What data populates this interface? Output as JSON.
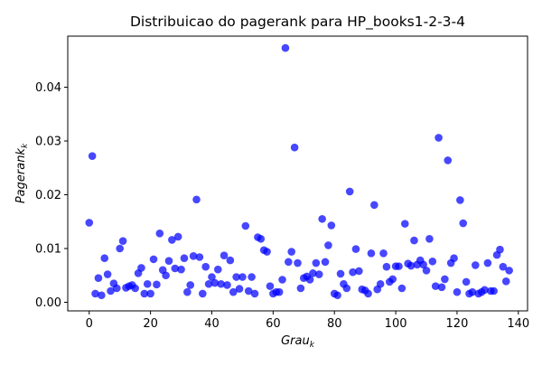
{
  "chart_data": {
    "type": "scatter",
    "title": "Distribuicao do pagerank para HP_books1-2-3-4",
    "xlabel": {
      "main": "Grau",
      "sub": "k"
    },
    "ylabel": {
      "main": "Pagerank",
      "sub": "k"
    },
    "xlim": [
      -7,
      143
    ],
    "ylim": [
      -0.0016,
      0.0495
    ],
    "x_ticks": [
      0,
      20,
      40,
      60,
      80,
      100,
      120,
      140
    ],
    "x_tick_labels": [
      "0",
      "20",
      "40",
      "60",
      "80",
      "100",
      "120",
      "140"
    ],
    "y_ticks": [
      0.0,
      0.01,
      0.02,
      0.03,
      0.04
    ],
    "y_tick_labels": [
      "0.00",
      "0.01",
      "0.02",
      "0.03",
      "0.04"
    ],
    "grid": false,
    "legend": "none",
    "color": "#0000ff",
    "x": [
      0,
      1,
      2,
      3,
      4,
      5,
      6,
      7,
      8,
      9,
      10,
      11,
      12,
      13,
      14,
      15,
      16,
      17,
      18,
      19,
      20,
      21,
      22,
      23,
      24,
      25,
      26,
      27,
      28,
      29,
      30,
      31,
      32,
      33,
      34,
      35,
      36,
      37,
      38,
      39,
      40,
      41,
      42,
      43,
      44,
      45,
      46,
      47,
      48,
      49,
      50,
      51,
      52,
      53,
      54,
      55,
      56,
      57,
      58,
      59,
      60,
      61,
      62,
      63,
      64,
      65,
      66,
      67,
      68,
      69,
      70,
      71,
      72,
      73,
      74,
      75,
      76,
      77,
      78,
      79,
      80,
      81,
      82,
      83,
      84,
      85,
      86,
      87,
      88,
      89,
      90,
      91,
      92,
      93,
      94,
      95,
      96,
      97,
      98,
      99,
      100,
      101,
      102,
      103,
      104,
      105,
      106,
      107,
      108,
      109,
      110,
      111,
      112,
      113,
      114,
      115,
      116,
      117,
      118,
      119,
      120,
      121,
      122,
      123,
      124,
      125,
      126,
      127,
      128,
      129,
      130,
      131,
      132,
      133,
      134,
      135,
      136,
      137
    ],
    "y": [
      0.0148,
      0.0272,
      0.0016,
      0.0045,
      0.0013,
      0.0082,
      0.0052,
      0.0021,
      0.0035,
      0.0026,
      0.01,
      0.0114,
      0.0027,
      0.003,
      0.0032,
      0.0026,
      0.0054,
      0.0064,
      0.0016,
      0.0034,
      0.0016,
      0.008,
      0.0033,
      0.0128,
      0.006,
      0.005,
      0.0077,
      0.0116,
      0.0063,
      0.0122,
      0.0061,
      0.0082,
      0.0019,
      0.0032,
      0.0086,
      0.0191,
      0.0084,
      0.0016,
      0.0066,
      0.0034,
      0.0047,
      0.0036,
      0.0061,
      0.0034,
      0.0087,
      0.0032,
      0.0078,
      0.0019,
      0.0047,
      0.0025,
      0.0047,
      0.0142,
      0.0021,
      0.0047,
      0.0016,
      0.0121,
      0.0118,
      0.0097,
      0.0094,
      0.003,
      0.0016,
      0.0019,
      0.0019,
      0.0042,
      0.0473,
      0.0075,
      0.0094,
      0.0288,
      0.0073,
      0.0026,
      0.0045,
      0.0048,
      0.0042,
      0.0054,
      0.0073,
      0.0052,
      0.0155,
      0.0075,
      0.0106,
      0.0143,
      0.0016,
      0.0013,
      0.0053,
      0.0034,
      0.0026,
      0.0206,
      0.0056,
      0.0099,
      0.0058,
      0.0024,
      0.0022,
      0.0016,
      0.0091,
      0.0181,
      0.0024,
      0.0034,
      0.0091,
      0.0066,
      0.0038,
      0.0043,
      0.0067,
      0.0067,
      0.0026,
      0.0146,
      0.0072,
      0.0068,
      0.0115,
      0.007,
      0.0078,
      0.007,
      0.0059,
      0.0118,
      0.0076,
      0.003,
      0.0306,
      0.0028,
      0.0043,
      0.0264,
      0.0073,
      0.0082,
      0.0019,
      0.019,
      0.0147,
      0.0038,
      0.0016,
      0.0019,
      0.0069,
      0.0016,
      0.0019,
      0.0023,
      0.0073,
      0.0021,
      0.0021,
      0.0088,
      0.0098,
      0.0066,
      0.0039,
      0.0059
    ]
  }
}
